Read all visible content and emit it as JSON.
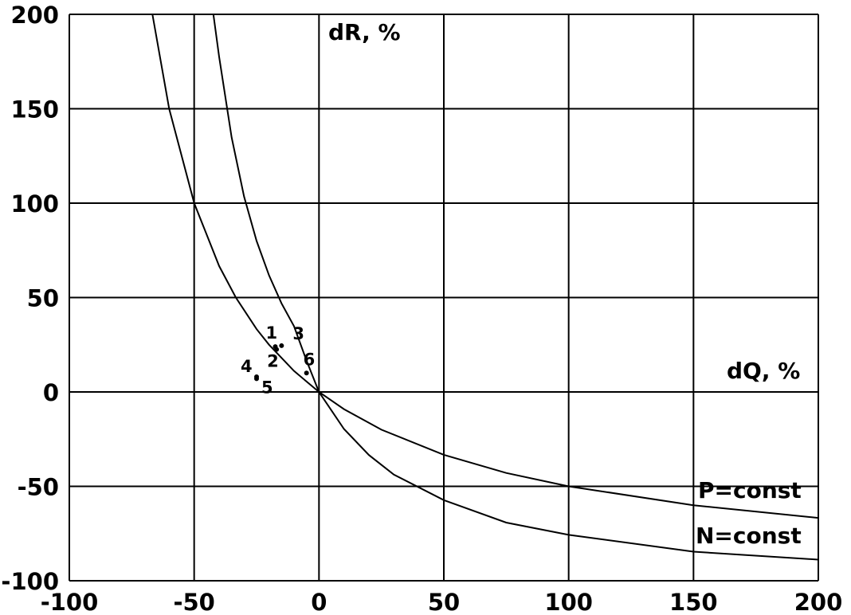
{
  "chart_data": {
    "type": "line",
    "xlabel": "dQ, %",
    "ylabel": "dR, %",
    "xlim": [
      -100,
      200
    ],
    "ylim": [
      -100,
      200
    ],
    "xticks": [
      "-100",
      "-50",
      "0",
      "50",
      "100",
      "150",
      "200"
    ],
    "yticks": [
      "200",
      "150",
      "100",
      "50",
      "0",
      "-50",
      "-100"
    ],
    "grid": true,
    "series": [
      {
        "name": "P=const",
        "x": [
          -66.7,
          -60,
          -50,
          -40,
          -33.3,
          -25,
          -20,
          -10,
          0,
          10,
          25,
          50,
          75,
          100,
          150,
          200
        ],
        "y": [
          200,
          150,
          100,
          66.7,
          50,
          33.3,
          25,
          11.1,
          0,
          -9.1,
          -20,
          -33.3,
          -42.9,
          -50,
          -60,
          -66.7
        ]
      },
      {
        "name": "N=const",
        "x": [
          -42.3,
          -40,
          -35,
          -30,
          -25,
          -20,
          -15,
          -10,
          -5,
          0,
          10,
          20,
          30,
          50,
          75,
          100,
          150,
          200
        ],
        "y": [
          200,
          177.5,
          134.8,
          103.5,
          80,
          61.7,
          46.9,
          34.8,
          16.6,
          0,
          -19.6,
          -33.4,
          -43.8,
          -57.3,
          -69.2,
          -75.7,
          -84.6,
          -88.8
        ]
      }
    ],
    "points": [
      {
        "label": "1",
        "x": -17.5,
        "y": 24
      },
      {
        "label": "2",
        "x": -17,
        "y": 22.5
      },
      {
        "label": "3",
        "x": -15,
        "y": 24.5
      },
      {
        "label": "4",
        "x": -25,
        "y": 8
      },
      {
        "label": "5",
        "x": -25,
        "y": 7
      },
      {
        "label": "6",
        "x": -5,
        "y": 10
      }
    ]
  }
}
